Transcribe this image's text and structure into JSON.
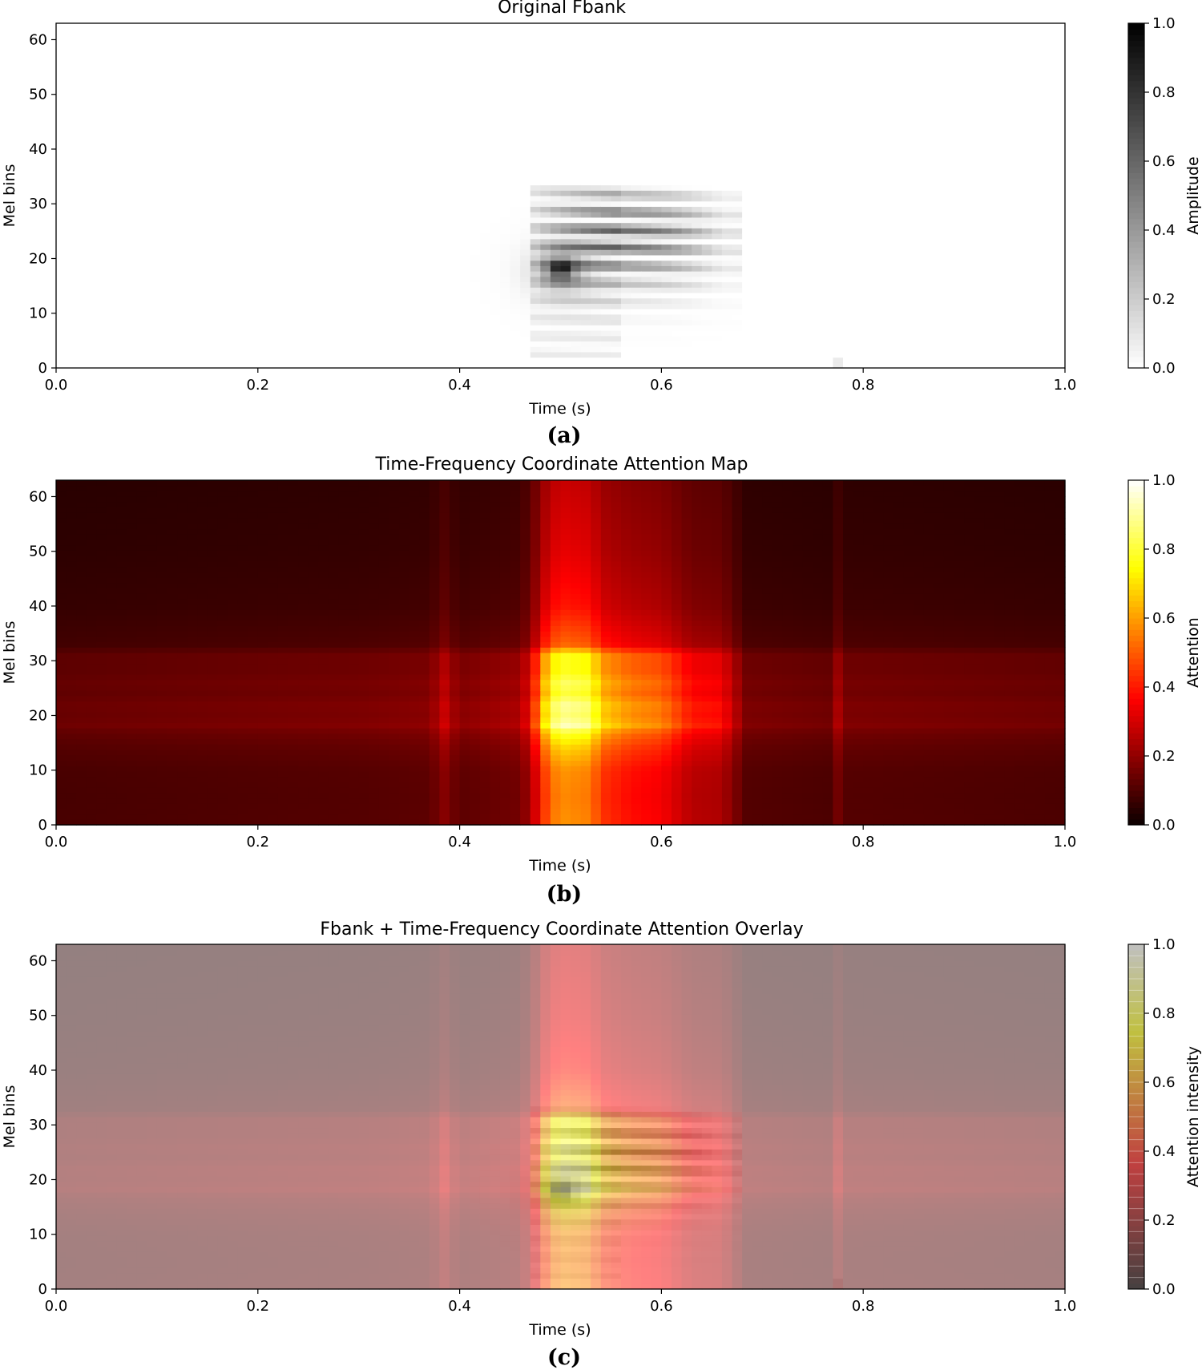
{
  "chart_data": [
    {
      "type": "heatmap",
      "panel": "(a)",
      "title": "Original Fbank",
      "xlabel": "Time (s)",
      "ylabel": "Mel bins",
      "xlim": [
        0.0,
        1.0
      ],
      "ylim": [
        0,
        63
      ],
      "xticks": [
        "0.0",
        "0.2",
        "0.4",
        "0.6",
        "0.8",
        "1.0"
      ],
      "yticks": [
        "0",
        "10",
        "20",
        "30",
        "40",
        "50",
        "60"
      ],
      "colorbar": {
        "label": "Amplitude",
        "colormap": "gray_r",
        "ticks": [
          "0.0",
          "0.2",
          "0.4",
          "0.6",
          "0.8",
          "1.0"
        ],
        "range": [
          0.0,
          1.0
        ]
      },
      "active_region": {
        "time_start": 0.475,
        "time_end": 0.68,
        "mel_low": 2,
        "mel_high": 33,
        "peak_time": 0.5,
        "peak_mel": 18,
        "peak_value": 1.0
      }
    },
    {
      "type": "heatmap",
      "panel": "(b)",
      "title": "Time-Frequency Coordinate Attention Map",
      "xlabel": "Time (s)",
      "ylabel": "Mel bins",
      "xlim": [
        0.0,
        1.0
      ],
      "ylim": [
        0,
        63
      ],
      "xticks": [
        "0.0",
        "0.2",
        "0.4",
        "0.6",
        "0.8",
        "1.0"
      ],
      "yticks": [
        "0",
        "10",
        "20",
        "30",
        "40",
        "50",
        "60"
      ],
      "colorbar": {
        "label": "Attention",
        "colormap": "hot",
        "ticks": [
          "0.0",
          "0.2",
          "0.4",
          "0.6",
          "0.8",
          "1.0"
        ],
        "range": [
          0.0,
          1.0
        ]
      },
      "time_profile": [
        [
          0.0,
          0.15
        ],
        [
          0.3,
          0.18
        ],
        [
          0.37,
          0.2
        ],
        [
          0.385,
          0.3
        ],
        [
          0.4,
          0.2
        ],
        [
          0.455,
          0.25
        ],
        [
          0.47,
          0.35
        ],
        [
          0.48,
          0.65
        ],
        [
          0.49,
          0.85
        ],
        [
          0.5,
          0.95
        ],
        [
          0.53,
          0.9
        ],
        [
          0.54,
          0.72
        ],
        [
          0.57,
          0.62
        ],
        [
          0.6,
          0.58
        ],
        [
          0.615,
          0.5
        ],
        [
          0.63,
          0.42
        ],
        [
          0.66,
          0.4
        ],
        [
          0.67,
          0.3
        ],
        [
          0.685,
          0.18
        ],
        [
          0.77,
          0.16
        ],
        [
          0.775,
          0.25
        ],
        [
          0.785,
          0.18
        ],
        [
          1.0,
          0.16
        ]
      ],
      "freq_profile": [
        [
          0,
          0.62
        ],
        [
          5,
          0.6
        ],
        [
          10,
          0.62
        ],
        [
          14,
          0.72
        ],
        [
          17,
          0.85
        ],
        [
          18,
          1.0
        ],
        [
          20,
          0.92
        ],
        [
          22,
          0.96
        ],
        [
          24,
          0.85
        ],
        [
          26,
          0.9
        ],
        [
          28,
          0.82
        ],
        [
          31,
          0.82
        ],
        [
          33,
          0.55
        ],
        [
          40,
          0.42
        ],
        [
          50,
          0.35
        ],
        [
          63,
          0.3
        ]
      ]
    },
    {
      "type": "heatmap",
      "panel": "(c)",
      "title": "Fbank + Time-Frequency Coordinate Attention Overlay",
      "xlabel": "Time (s)",
      "ylabel": "Mel bins",
      "xlim": [
        0.0,
        1.0
      ],
      "ylim": [
        0,
        63
      ],
      "xticks": [
        "0.0",
        "0.2",
        "0.4",
        "0.6",
        "0.8",
        "1.0"
      ],
      "yticks": [
        "0",
        "10",
        "20",
        "30",
        "40",
        "50",
        "60"
      ],
      "colorbar": {
        "label": "Attention intensity",
        "colormap": "hot (alpha 0.5 over gray)",
        "ticks": [
          "0.0",
          "0.2",
          "0.4",
          "0.6",
          "0.8",
          "1.0"
        ],
        "range": [
          0.0,
          1.0
        ]
      }
    }
  ],
  "captions": [
    "(a)",
    "(b)",
    "(c)"
  ]
}
